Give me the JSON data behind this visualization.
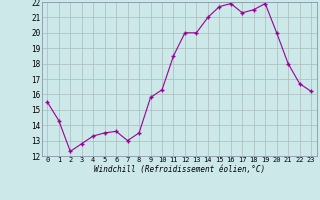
{
  "x": [
    0,
    1,
    2,
    3,
    4,
    5,
    6,
    7,
    8,
    9,
    10,
    11,
    12,
    13,
    14,
    15,
    16,
    17,
    18,
    19,
    20,
    21,
    22,
    23
  ],
  "y": [
    15.5,
    14.3,
    12.3,
    12.8,
    13.3,
    13.5,
    13.6,
    13.0,
    13.5,
    15.8,
    16.3,
    18.5,
    20.0,
    20.0,
    21.0,
    21.7,
    21.9,
    21.3,
    21.5,
    21.9,
    20.0,
    18.0,
    16.7,
    16.2
  ],
  "xlabel": "Windchill (Refroidissement éolien,°C)",
  "ylim": [
    12,
    22
  ],
  "xlim": [
    -0.5,
    23.5
  ],
  "yticks": [
    12,
    13,
    14,
    15,
    16,
    17,
    18,
    19,
    20,
    21,
    22
  ],
  "xticks": [
    0,
    1,
    2,
    3,
    4,
    5,
    6,
    7,
    8,
    9,
    10,
    11,
    12,
    13,
    14,
    15,
    16,
    17,
    18,
    19,
    20,
    21,
    22,
    23
  ],
  "line_color": "#990099",
  "marker": "+",
  "bg_color": "#cce8e8",
  "grid_color": "#aabbbb"
}
